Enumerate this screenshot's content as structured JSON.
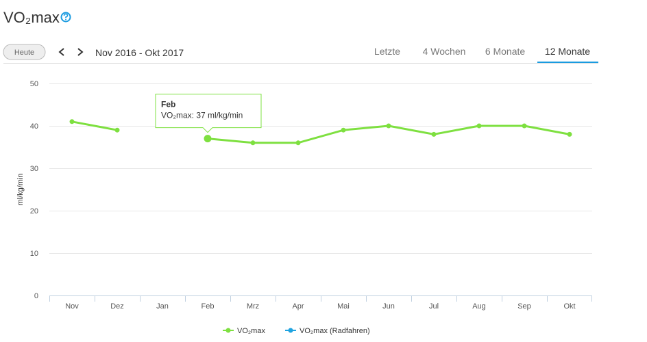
{
  "header": {
    "title": "VO₂max",
    "today_button": "Heute",
    "range": "Nov 2016 - Okt 2017",
    "tabs": [
      "Letzte",
      "4 Wochen",
      "6 Monate",
      "12 Monate"
    ],
    "active_tab": 3
  },
  "chart_data": {
    "type": "line",
    "y_label": "ml/kg/min",
    "categories": [
      "Nov",
      "Dez",
      "Jan",
      "Feb",
      "Mrz",
      "Apr",
      "Mai",
      "Jun",
      "Jul",
      "Aug",
      "Sep",
      "Okt"
    ],
    "series": [
      {
        "name": "VO₂max",
        "color": "#7ee040",
        "values": [
          41,
          39,
          null,
          37,
          36,
          36,
          39,
          40,
          38,
          40,
          40,
          38
        ]
      },
      {
        "name": "VO₂max (Radfahren)",
        "color": "#1fa3e0",
        "values": [
          null,
          null,
          null,
          null,
          null,
          null,
          null,
          null,
          null,
          null,
          null,
          null
        ]
      }
    ],
    "ylim": [
      0,
      50
    ],
    "yticks": [
      0,
      10,
      20,
      30,
      40,
      50
    ],
    "grid": true,
    "tooltip": {
      "category": "Feb",
      "text": "VO₂max: 37 ml/kg/min"
    }
  }
}
